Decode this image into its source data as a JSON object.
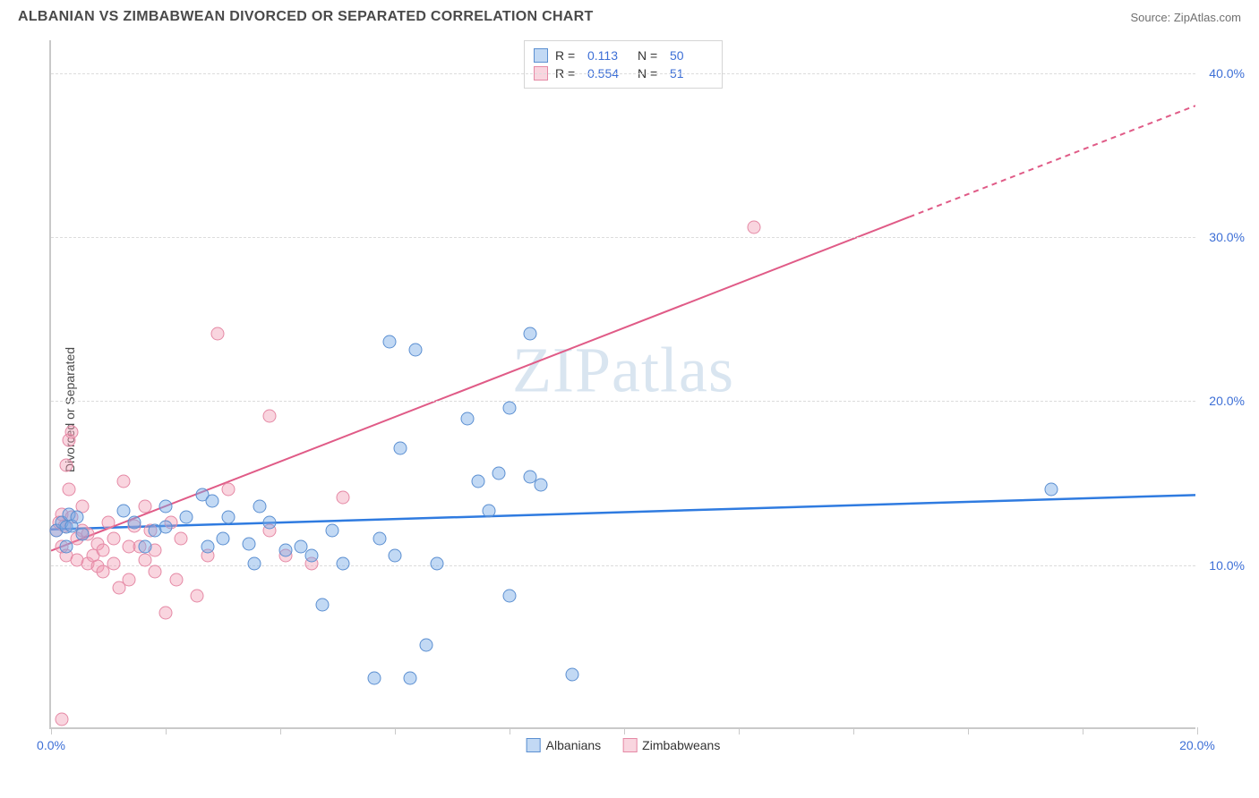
{
  "header": {
    "title": "ALBANIAN VS ZIMBABWEAN DIVORCED OR SEPARATED CORRELATION CHART",
    "source": "Source: ZipAtlas.com"
  },
  "watermark": {
    "prefix": "ZIP",
    "suffix": "atlas"
  },
  "chart": {
    "type": "scatter",
    "ylabel": "Divorced or Separated",
    "background_color": "#ffffff",
    "grid_color": "#dcdcdc",
    "axis_color": "#c9c9c9",
    "label_color": "#3d6fd6",
    "title_fontsize": 16,
    "label_fontsize": 14,
    "marker_size": 15,
    "xlim": [
      0,
      22
    ],
    "ylim": [
      0,
      42
    ],
    "yticks": [
      10,
      20,
      30,
      40
    ],
    "ytick_labels": [
      "10.0%",
      "20.0%",
      "30.0%",
      "40.0%"
    ],
    "xticks": [
      0,
      2.2,
      4.4,
      6.6,
      8.8,
      11,
      13.2,
      15.4,
      17.6,
      19.8,
      22
    ],
    "xtick_labels": {
      "start": "0.0%",
      "end": "20.0%"
    },
    "series": {
      "albanians": {
        "label": "Albanians",
        "color_fill": "rgba(120,170,230,0.45)",
        "color_stroke": "#5b8fd1",
        "trend_color": "#2f7be0",
        "trend": {
          "y_at_x0": 12.1,
          "y_at_xmax": 14.2,
          "solid_until_x": 22,
          "width": 2.5
        },
        "stats": {
          "r": "0.113",
          "n": "50"
        },
        "points": [
          {
            "x": 0.1,
            "y": 12.0
          },
          {
            "x": 0.2,
            "y": 12.5
          },
          {
            "x": 0.3,
            "y": 12.2
          },
          {
            "x": 0.3,
            "y": 11.0
          },
          {
            "x": 0.35,
            "y": 13.0
          },
          {
            "x": 0.4,
            "y": 12.3
          },
          {
            "x": 0.5,
            "y": 12.8
          },
          {
            "x": 0.6,
            "y": 11.8
          },
          {
            "x": 1.4,
            "y": 13.2
          },
          {
            "x": 1.6,
            "y": 12.5
          },
          {
            "x": 1.8,
            "y": 11.0
          },
          {
            "x": 2.0,
            "y": 12.0
          },
          {
            "x": 2.2,
            "y": 13.5
          },
          {
            "x": 2.2,
            "y": 12.2
          },
          {
            "x": 2.6,
            "y": 12.8
          },
          {
            "x": 2.9,
            "y": 14.2
          },
          {
            "x": 3.0,
            "y": 11.0
          },
          {
            "x": 3.3,
            "y": 11.5
          },
          {
            "x": 3.4,
            "y": 12.8
          },
          {
            "x": 3.8,
            "y": 11.2
          },
          {
            "x": 3.9,
            "y": 10.0
          },
          {
            "x": 4.2,
            "y": 12.5
          },
          {
            "x": 4.5,
            "y": 10.8
          },
          {
            "x": 4.8,
            "y": 11.0
          },
          {
            "x": 5.0,
            "y": 10.5
          },
          {
            "x": 5.2,
            "y": 7.5
          },
          {
            "x": 5.4,
            "y": 12.0
          },
          {
            "x": 5.6,
            "y": 10.0
          },
          {
            "x": 6.2,
            "y": 3.0
          },
          {
            "x": 6.3,
            "y": 11.5
          },
          {
            "x": 6.5,
            "y": 23.5
          },
          {
            "x": 6.6,
            "y": 10.5
          },
          {
            "x": 6.7,
            "y": 17.0
          },
          {
            "x": 6.9,
            "y": 3.0
          },
          {
            "x": 7.0,
            "y": 23.0
          },
          {
            "x": 7.2,
            "y": 5.0
          },
          {
            "x": 7.4,
            "y": 10.0
          },
          {
            "x": 8.0,
            "y": 18.8
          },
          {
            "x": 8.2,
            "y": 15.0
          },
          {
            "x": 8.4,
            "y": 13.2
          },
          {
            "x": 8.6,
            "y": 15.5
          },
          {
            "x": 8.8,
            "y": 8.0
          },
          {
            "x": 9.2,
            "y": 15.3
          },
          {
            "x": 9.2,
            "y": 24.0
          },
          {
            "x": 9.4,
            "y": 14.8
          },
          {
            "x": 10.0,
            "y": 3.2
          },
          {
            "x": 8.8,
            "y": 19.5
          },
          {
            "x": 19.2,
            "y": 14.5
          },
          {
            "x": 3.1,
            "y": 13.8
          },
          {
            "x": 4.0,
            "y": 13.5
          }
        ]
      },
      "zimbabweans": {
        "label": "Zimbabweans",
        "color_fill": "rgba(240,150,175,0.40)",
        "color_stroke": "#e589a5",
        "trend_color": "#e05b87",
        "trend": {
          "y_at_x0": 10.8,
          "y_at_xmax": 38.0,
          "solid_until_x": 16.5,
          "width": 2
        },
        "stats": {
          "r": "0.554",
          "n": "51"
        },
        "points": [
          {
            "x": 0.1,
            "y": 12.0
          },
          {
            "x": 0.15,
            "y": 12.5
          },
          {
            "x": 0.2,
            "y": 13.0
          },
          {
            "x": 0.2,
            "y": 11.0
          },
          {
            "x": 0.25,
            "y": 12.3
          },
          {
            "x": 0.3,
            "y": 16.0
          },
          {
            "x": 0.3,
            "y": 10.5
          },
          {
            "x": 0.35,
            "y": 17.5
          },
          {
            "x": 0.35,
            "y": 14.5
          },
          {
            "x": 0.4,
            "y": 12.8
          },
          {
            "x": 0.4,
            "y": 18.0
          },
          {
            "x": 0.5,
            "y": 11.5
          },
          {
            "x": 0.5,
            "y": 10.2
          },
          {
            "x": 0.6,
            "y": 12.0
          },
          {
            "x": 0.6,
            "y": 13.5
          },
          {
            "x": 0.7,
            "y": 10.0
          },
          {
            "x": 0.7,
            "y": 11.8
          },
          {
            "x": 0.8,
            "y": 10.5
          },
          {
            "x": 0.9,
            "y": 9.8
          },
          {
            "x": 0.9,
            "y": 11.2
          },
          {
            "x": 1.0,
            "y": 10.8
          },
          {
            "x": 1.0,
            "y": 9.5
          },
          {
            "x": 1.1,
            "y": 12.5
          },
          {
            "x": 1.2,
            "y": 10.0
          },
          {
            "x": 1.2,
            "y": 11.5
          },
          {
            "x": 1.3,
            "y": 8.5
          },
          {
            "x": 1.4,
            "y": 15.0
          },
          {
            "x": 1.5,
            "y": 11.0
          },
          {
            "x": 1.5,
            "y": 9.0
          },
          {
            "x": 1.6,
            "y": 12.3
          },
          {
            "x": 1.7,
            "y": 11.0
          },
          {
            "x": 1.8,
            "y": 13.5
          },
          {
            "x": 1.8,
            "y": 10.2
          },
          {
            "x": 1.9,
            "y": 12.0
          },
          {
            "x": 2.0,
            "y": 10.8
          },
          {
            "x": 2.0,
            "y": 9.5
          },
          {
            "x": 2.2,
            "y": 7.0
          },
          {
            "x": 2.3,
            "y": 12.5
          },
          {
            "x": 2.4,
            "y": 9.0
          },
          {
            "x": 2.5,
            "y": 11.5
          },
          {
            "x": 2.8,
            "y": 8.0
          },
          {
            "x": 3.0,
            "y": 10.5
          },
          {
            "x": 3.2,
            "y": 24.0
          },
          {
            "x": 3.4,
            "y": 14.5
          },
          {
            "x": 4.2,
            "y": 19.0
          },
          {
            "x": 4.2,
            "y": 12.0
          },
          {
            "x": 4.5,
            "y": 10.5
          },
          {
            "x": 5.0,
            "y": 10.0
          },
          {
            "x": 5.6,
            "y": 14.0
          },
          {
            "x": 0.2,
            "y": 0.5
          },
          {
            "x": 13.5,
            "y": 30.5
          }
        ]
      }
    }
  }
}
